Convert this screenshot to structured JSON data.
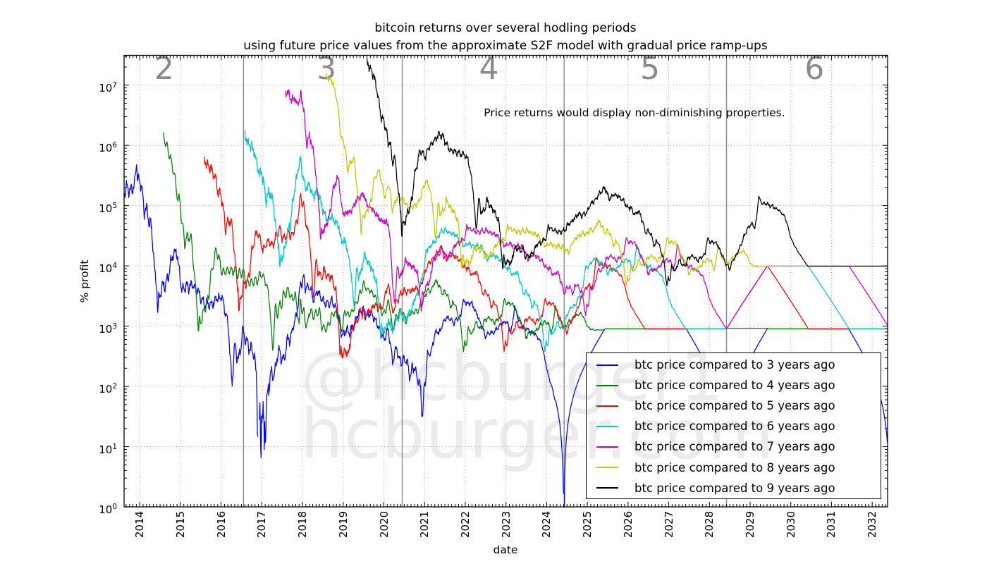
{
  "title": {
    "line1": "bitcoin returns over several hodling periods",
    "line2": "using future price values from the approximate S2F model with gradual price ramp-ups"
  },
  "annotation": "Price returns would display non-diminishing properties.",
  "watermark": {
    "line1": "@hcburger1",
    "line2": "hcburger.com"
  },
  "axes": {
    "xlabel": "date",
    "ylabel": "% profit",
    "x_ticks": [
      2014,
      2015,
      2016,
      2017,
      2018,
      2019,
      2020,
      2021,
      2022,
      2023,
      2024,
      2025,
      2026,
      2027,
      2028,
      2029,
      2030,
      2031,
      2032
    ],
    "y_tick_base": "10",
    "y_tick_exponents": [
      0,
      1,
      2,
      3,
      4,
      5,
      6,
      7
    ]
  },
  "epoch_labels": [
    {
      "label": "2",
      "year": 2014.6
    },
    {
      "label": "3",
      "year": 2018.59
    },
    {
      "label": "4",
      "year": 2022.58
    },
    {
      "label": "5",
      "year": 2026.54
    },
    {
      "label": "6",
      "year": 2030.58
    }
  ],
  "halving_lines_years": [
    2016.55,
    2020.45,
    2024.43,
    2028.42
  ],
  "legend": {
    "items": [
      {
        "label": "btc price compared to 3 years ago",
        "color": "#0000ff",
        "compare_years": 3
      },
      {
        "label": "btc price compared to 4 years ago",
        "color": "#007f00",
        "compare_years": 4
      },
      {
        "label": "btc price compared to 5 years ago",
        "color": "#ff0000",
        "compare_years": 5
      },
      {
        "label": "btc price compared to 6 years ago",
        "color": "#00c3c3",
        "compare_years": 6
      },
      {
        "label": "btc price compared to 7 years ago",
        "color": "#c500c5",
        "compare_years": 7
      },
      {
        "label": "btc price compared to 8 years ago",
        "color": "#c6c600",
        "compare_years": 8
      },
      {
        "label": "btc price compared to 9 years ago",
        "color": "#000000",
        "compare_years": 9
      }
    ]
  },
  "colors": {
    "grid": "#9a9a9a",
    "frame": "#000000",
    "halving_line": "#8a8a8a",
    "epoch_label": "#8a8a8a",
    "watermark": "#ebebeb"
  },
  "chart_data": {
    "type": "line",
    "title": "bitcoin returns over several hodling periods using future price values from the approximate S2F model with gradual price ramp-ups",
    "xlabel": "date",
    "ylabel": "% profit",
    "x_range_decimal_years": [
      2013.6,
      2032.38
    ],
    "y_scale": "log10",
    "ylim": [
      1,
      31600000
    ],
    "x_grid": true,
    "y_grid": true,
    "legend_position": "lower right inside axes",
    "series": [
      {
        "name": "btc price compared to 3 years ago",
        "color": "#0000ff",
        "compare_years": 3
      },
      {
        "name": "btc price compared to 4 years ago",
        "color": "#007f00",
        "compare_years": 4
      },
      {
        "name": "btc price compared to 5 years ago",
        "color": "#ff0000",
        "compare_years": 5
      },
      {
        "name": "btc price compared to 6 years ago",
        "color": "#00c3c3",
        "compare_years": 6
      },
      {
        "name": "btc price compared to 7 years ago",
        "color": "#c500c5",
        "compare_years": 7
      },
      {
        "name": "btc price compared to 8 years ago",
        "color": "#c6c600",
        "compare_years": 8
      },
      {
        "name": "btc price compared to 9 years ago",
        "color": "#000000",
        "compare_years": 9
      }
    ],
    "derivation": "Each series plots profit_pct(t) = (P(t)/P(t-N) - 1) * 100 on a log axis, where N = compare_years and log10 P is interpolated from btc_price_log10_usd keypoints (historical up to 2021.42, S2F step model with 1-year gradual ramp-ups after each halving thereafter). Values <= 0 are masked (dips to the bottom axis at halving anniversaries).",
    "btc_price_log10_usd": {
      "historical": [
        [
          2010.585,
          -1.35
        ],
        [
          2010.66,
          -1.27
        ],
        [
          2010.75,
          -1.19
        ],
        [
          2010.83,
          -1.02
        ],
        [
          2010.88,
          -0.82
        ],
        [
          2010.93,
          -0.66
        ],
        [
          2011.0,
          -0.52
        ],
        [
          2011.055,
          -0.4
        ],
        [
          2011.105,
          0.0
        ],
        [
          2011.15,
          -0.14
        ],
        [
          2011.21,
          -0.12
        ],
        [
          2011.27,
          -0.06
        ],
        [
          2011.31,
          0.23
        ],
        [
          2011.35,
          0.62
        ],
        [
          2011.39,
          0.89
        ],
        [
          2011.42,
          1.0
        ],
        [
          2011.44,
          1.47
        ],
        [
          2011.47,
          1.28
        ],
        [
          2011.52,
          1.21
        ],
        [
          2011.58,
          1.11
        ],
        [
          2011.64,
          1.03
        ],
        [
          2011.7,
          0.89
        ],
        [
          2011.75,
          0.55
        ],
        [
          2011.8,
          0.45
        ],
        [
          2011.86,
          0.33
        ],
        [
          2011.9,
          0.3
        ],
        [
          2011.96,
          0.52
        ],
        [
          2012.02,
          0.71
        ],
        [
          2012.1,
          0.67
        ],
        [
          2012.2,
          0.69
        ],
        [
          2012.32,
          0.7
        ],
        [
          2012.45,
          0.8
        ],
        [
          2012.55,
          0.95
        ],
        [
          2012.63,
          1.03
        ],
        [
          2012.75,
          1.05
        ],
        [
          2012.88,
          1.09
        ],
        [
          2013.0,
          1.12
        ],
        [
          2013.07,
          1.2
        ],
        [
          2013.13,
          1.4
        ],
        [
          2013.19,
          1.67
        ],
        [
          2013.24,
          2.16
        ],
        [
          2013.27,
          2.36
        ],
        [
          2013.3,
          2.08
        ],
        [
          2013.335,
          1.83
        ],
        [
          2013.38,
          2.03
        ],
        [
          2013.43,
          2.07
        ],
        [
          2013.49,
          2.0
        ],
        [
          2013.52,
          1.85
        ],
        [
          2013.57,
          1.9
        ],
        [
          2013.63,
          1.98
        ],
        [
          2013.7,
          2.03
        ],
        [
          2013.76,
          2.11
        ],
        [
          2013.82,
          2.22
        ],
        [
          2013.86,
          2.42
        ],
        [
          2013.895,
          2.74
        ],
        [
          2013.92,
          3.06
        ],
        [
          2013.95,
          2.78
        ],
        [
          2013.98,
          2.86
        ],
        [
          2014.02,
          2.92
        ],
        [
          2014.07,
          2.85
        ],
        [
          2014.12,
          2.93
        ],
        [
          2014.16,
          2.8
        ],
        [
          2014.21,
          2.66
        ],
        [
          2014.28,
          2.65
        ],
        [
          2014.35,
          2.7
        ],
        [
          2014.42,
          2.65
        ],
        [
          2014.47,
          2.78
        ],
        [
          2014.52,
          2.8
        ],
        [
          2014.6,
          2.77
        ],
        [
          2014.68,
          2.72
        ],
        [
          2014.76,
          2.58
        ],
        [
          2014.84,
          2.57
        ],
        [
          2014.92,
          2.53
        ],
        [
          2015.0,
          2.47
        ],
        [
          2015.04,
          2.28
        ],
        [
          2015.08,
          2.31
        ],
        [
          2015.13,
          2.35
        ],
        [
          2015.2,
          2.35
        ],
        [
          2015.28,
          2.39
        ],
        [
          2015.36,
          2.38
        ],
        [
          2015.45,
          2.37
        ],
        [
          2015.53,
          2.36
        ],
        [
          2015.6,
          2.4
        ],
        [
          2015.68,
          2.42
        ],
        [
          2015.76,
          2.43
        ],
        [
          2015.83,
          2.48
        ],
        [
          2015.88,
          2.59
        ],
        [
          2015.93,
          2.56
        ],
        [
          2016.0,
          2.63
        ],
        [
          2016.07,
          2.57
        ],
        [
          2016.14,
          2.6
        ],
        [
          2016.22,
          2.62
        ],
        [
          2016.3,
          2.62
        ],
        [
          2016.38,
          2.64
        ],
        [
          2016.44,
          2.66
        ],
        [
          2016.48,
          2.74
        ],
        [
          2016.53,
          2.83
        ],
        [
          2016.58,
          2.81
        ],
        [
          2016.65,
          2.76
        ],
        [
          2016.72,
          2.78
        ],
        [
          2016.8,
          2.82
        ],
        [
          2016.88,
          2.86
        ],
        [
          2016.95,
          2.93
        ],
        [
          2017.0,
          3.0
        ],
        [
          2017.06,
          2.96
        ],
        [
          2017.13,
          3.07
        ],
        [
          2017.19,
          3.09
        ],
        [
          2017.25,
          3.04
        ],
        [
          2017.31,
          3.1
        ],
        [
          2017.37,
          3.26
        ],
        [
          2017.42,
          3.36
        ],
        [
          2017.45,
          3.41
        ],
        [
          2017.5,
          3.37
        ],
        [
          2017.54,
          3.39
        ],
        [
          2017.58,
          3.45
        ],
        [
          2017.62,
          3.56
        ],
        [
          2017.66,
          3.63
        ],
        [
          2017.7,
          3.52
        ],
        [
          2017.74,
          3.56
        ],
        [
          2017.79,
          3.66
        ],
        [
          2017.84,
          3.77
        ],
        [
          2017.88,
          3.86
        ],
        [
          2017.92,
          4.06
        ],
        [
          2017.955,
          4.28
        ],
        [
          2017.99,
          4.15
        ],
        [
          2018.03,
          4.17
        ],
        [
          2018.07,
          3.95
        ],
        [
          2018.11,
          3.98
        ],
        [
          2018.16,
          4.03
        ],
        [
          2018.21,
          3.95
        ],
        [
          2018.26,
          3.84
        ],
        [
          2018.31,
          3.89
        ],
        [
          2018.36,
          3.96
        ],
        [
          2018.42,
          3.92
        ],
        [
          2018.48,
          3.82
        ],
        [
          2018.54,
          3.79
        ],
        [
          2018.6,
          3.78
        ],
        [
          2018.66,
          3.82
        ],
        [
          2018.72,
          3.86
        ],
        [
          2018.78,
          3.81
        ],
        [
          2018.84,
          3.79
        ],
        [
          2018.89,
          3.75
        ],
        [
          2018.93,
          3.56
        ],
        [
          2018.97,
          3.51
        ],
        [
          2019.02,
          3.55
        ],
        [
          2019.08,
          3.56
        ],
        [
          2019.14,
          3.55
        ],
        [
          2019.2,
          3.6
        ],
        [
          2019.26,
          3.7
        ],
        [
          2019.32,
          3.77
        ],
        [
          2019.38,
          3.88
        ],
        [
          2019.44,
          3.95
        ],
        [
          2019.49,
          4.07
        ],
        [
          2019.54,
          4.04
        ],
        [
          2019.6,
          4.0
        ],
        [
          2019.66,
          4.02
        ],
        [
          2019.72,
          3.98
        ],
        [
          2019.78,
          3.95
        ],
        [
          2019.84,
          3.9
        ],
        [
          2019.9,
          3.86
        ],
        [
          2019.96,
          3.85
        ],
        [
          2020.02,
          3.85
        ],
        [
          2020.07,
          3.93
        ],
        [
          2020.12,
          4.0
        ],
        [
          2020.16,
          3.9
        ],
        [
          2020.21,
          3.58
        ],
        [
          2020.26,
          3.72
        ],
        [
          2020.31,
          3.81
        ],
        [
          2020.37,
          3.86
        ],
        [
          2020.42,
          3.92
        ],
        [
          2020.48,
          3.95
        ],
        [
          2020.55,
          3.96
        ],
        [
          2020.62,
          4.0
        ],
        [
          2020.7,
          4.02
        ],
        [
          2020.78,
          4.08
        ],
        [
          2020.84,
          4.12
        ],
        [
          2020.9,
          4.23
        ],
        [
          2020.96,
          4.38
        ],
        [
          2021.02,
          4.52
        ],
        [
          2021.08,
          4.6
        ],
        [
          2021.14,
          4.67
        ],
        [
          2021.2,
          4.74
        ],
        [
          2021.27,
          4.8
        ],
        [
          2021.34,
          4.88
        ],
        [
          2021.42,
          4.95
        ]
      ],
      "future_s2f_model": [
        [
          2021.42,
          4.95
        ],
        [
          2024.43,
          4.95
        ],
        [
          2025.43,
          5.95
        ],
        [
          2028.42,
          5.95
        ],
        [
          2029.42,
          6.95
        ],
        [
          2032.45,
          6.95
        ]
      ],
      "historical_end_decimal_year": 2021.42
    }
  }
}
